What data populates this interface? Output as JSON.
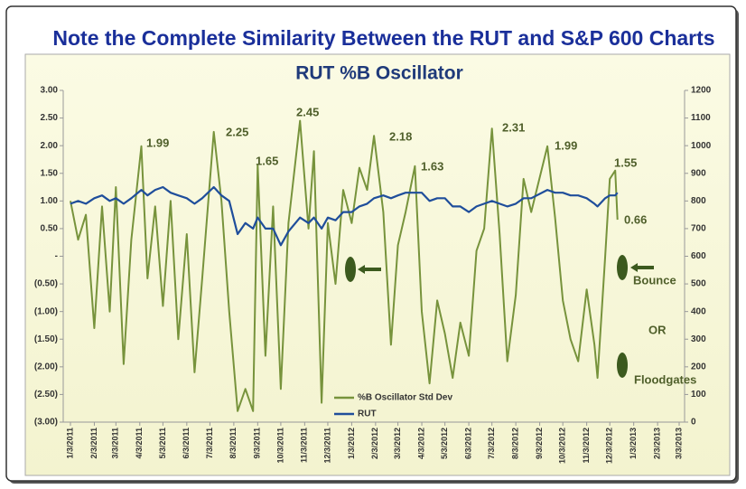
{
  "chart_data": {
    "type": "line",
    "title": "Note the Complete Similarity Between the RUT and S&P 600 Charts",
    "subtitle": "RUT %B Oscillator",
    "annotations": [
      "1.99",
      "2.25",
      "1.65",
      "2.45",
      "2.18",
      "1.63",
      "2.31",
      "1.99",
      "1.55",
      "0.66",
      "Bounce",
      "OR",
      "Floodgates"
    ],
    "x": [
      "1/3/2011",
      "1/13/2011",
      "1/23/2011",
      "2/3/2011",
      "2/13/2011",
      "2/23/2011",
      "3/3/2011",
      "3/13/2011",
      "3/23/2011",
      "4/5/2011",
      "4/13/2011",
      "4/23/2011",
      "5/3/2011",
      "5/13/2011",
      "5/23/2011",
      "6/3/2011",
      "6/13/2011",
      "6/23/2011",
      "7/8/2011",
      "7/18/2011",
      "7/28/2011",
      "8/8/2011",
      "8/18/2011",
      "8/28/2011",
      "9/3/2011",
      "9/13/2011",
      "9/23/2011",
      "10/3/2011",
      "10/13/2011",
      "10/28/2011",
      "11/8/2011",
      "11/15/2011",
      "11/25/2011",
      "12/3/2011",
      "12/13/2011",
      "12/23/2011",
      "1/3/2012",
      "1/13/2012",
      "1/23/2012",
      "2/1/2012",
      "2/13/2012",
      "2/23/2012",
      "3/3/2012",
      "3/13/2012",
      "3/25/2012",
      "4/3/2012",
      "4/13/2012",
      "4/23/2012",
      "5/3/2012",
      "5/13/2012",
      "5/23/2012",
      "6/3/2012",
      "6/13/2012",
      "6/23/2012",
      "7/3/2012",
      "7/13/2012",
      "7/23/2012",
      "8/3/2012",
      "8/13/2012",
      "8/23/2012",
      "9/13/2012",
      "9/23/2012",
      "10/3/2012",
      "10/13/2012",
      "10/23/2012",
      "11/3/2012",
      "11/13/2012",
      "11/17/2012",
      "11/27/2012",
      "12/3/2012",
      "12/10/2012",
      "12/13/2012"
    ],
    "series": [
      {
        "name": "%B Oscillator Std Dev",
        "color": "#77933c",
        "values": [
          1.0,
          0.3,
          0.75,
          -1.3,
          0.9,
          -1.0,
          1.25,
          -1.95,
          0.3,
          1.99,
          -0.4,
          0.9,
          -0.9,
          1.0,
          -1.5,
          0.4,
          -2.1,
          -0.4,
          2.25,
          1.0,
          -1.0,
          -2.8,
          -2.4,
          -2.8,
          1.65,
          -1.8,
          0.9,
          -2.4,
          0.6,
          2.45,
          0.5,
          1.9,
          -2.65,
          0.6,
          -0.5,
          1.2,
          0.6,
          1.6,
          1.2,
          2.18,
          0.8,
          -1.6,
          0.2,
          0.8,
          1.63,
          -1.0,
          -2.3,
          -0.8,
          -1.4,
          -2.2,
          -1.2,
          -1.8,
          0.1,
          0.5,
          2.31,
          0.4,
          -1.9,
          -0.7,
          1.4,
          0.8,
          1.99,
          0.7,
          -0.8,
          -1.5,
          -1.9,
          -0.6,
          -1.6,
          -2.2,
          0.0,
          1.4,
          1.55,
          0.66
        ]
      },
      {
        "name": "RUT",
        "color": "#1f4e9b",
        "axis": "y2",
        "values": [
          790,
          800,
          790,
          810,
          820,
          800,
          810,
          790,
          810,
          840,
          820,
          840,
          850,
          830,
          820,
          810,
          790,
          810,
          850,
          820,
          800,
          680,
          720,
          700,
          740,
          700,
          700,
          640,
          690,
          740,
          720,
          740,
          700,
          740,
          730,
          760,
          760,
          780,
          790,
          810,
          820,
          810,
          820,
          830,
          830,
          830,
          800,
          810,
          810,
          780,
          780,
          760,
          780,
          790,
          800,
          790,
          780,
          790,
          810,
          810,
          840,
          830,
          830,
          820,
          820,
          810,
          790,
          780,
          810,
          820,
          820,
          830
        ]
      }
    ],
    "xlim": [
      "1/3/2011",
      "3/3/2013"
    ],
    "xticks": [
      "1/3/2011",
      "2/3/2011",
      "3/3/2011",
      "4/3/2011",
      "5/3/2011",
      "6/3/2011",
      "7/3/2011",
      "8/3/2011",
      "9/3/2011",
      "10/3/2011",
      "11/3/2011",
      "12/3/2011",
      "1/3/2012",
      "2/3/2012",
      "3/3/2012",
      "4/3/2012",
      "5/3/2012",
      "6/3/2012",
      "7/3/2012",
      "8/3/2012",
      "9/3/2012",
      "10/3/2012",
      "11/3/2012",
      "12/3/2012",
      "1/3/2013",
      "2/3/2013",
      "3/3/2013"
    ],
    "ylim": [
      -3,
      3
    ],
    "yticks": [
      {
        "value": 3,
        "label": "3.00"
      },
      {
        "value": 2.5,
        "label": "2.50"
      },
      {
        "value": 2,
        "label": "2.00"
      },
      {
        "value": 1.5,
        "label": "1.50"
      },
      {
        "value": 1,
        "label": "1.00"
      },
      {
        "value": 0.5,
        "label": "0.50"
      },
      {
        "value": 0,
        "label": "-"
      },
      {
        "value": -0.5,
        "label": "(0.50)"
      },
      {
        "value": -1,
        "label": "(1.00)"
      },
      {
        "value": -1.5,
        "label": "(1.50)"
      },
      {
        "value": -2,
        "label": "(2.00)"
      },
      {
        "value": -2.5,
        "label": "(2.50)"
      },
      {
        "value": -3,
        "label": "(3.00)"
      }
    ],
    "y2lim": [
      0,
      1200
    ],
    "y2ticks": [
      0,
      100,
      200,
      300,
      400,
      500,
      600,
      700,
      800,
      900,
      1000,
      1100,
      1200
    ]
  }
}
